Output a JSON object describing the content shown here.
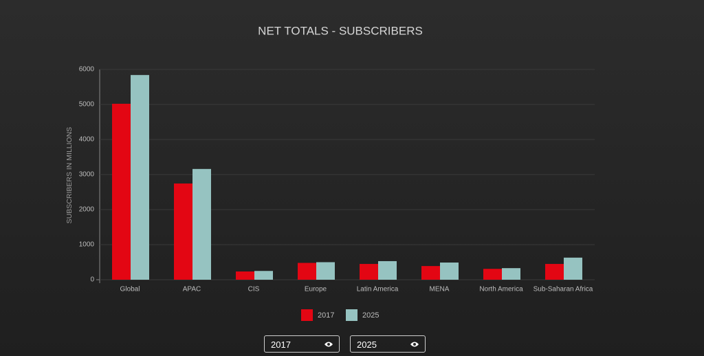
{
  "chart_data": {
    "type": "bar",
    "title": "NET TOTALS - SUBSCRIBERS",
    "y_label": "SUBSCRIBERS IN MILLIONS",
    "categories": [
      "Global",
      "APAC",
      "CIS",
      "Europe",
      "Latin America",
      "MENA",
      "North America",
      "Sub-Saharan Africa"
    ],
    "series": [
      {
        "name": "2017",
        "color": "#e30613",
        "values": [
          5020,
          2745,
          235,
          480,
          450,
          390,
          310,
          450
        ]
      },
      {
        "name": "2025",
        "color": "#96c3c1",
        "values": [
          5840,
          3160,
          250,
          500,
          530,
          490,
          330,
          630
        ]
      }
    ],
    "ylim": [
      0,
      6000
    ],
    "yticks": [
      0,
      1000,
      2000,
      3000,
      4000,
      5000,
      6000
    ],
    "grid": true
  }
}
